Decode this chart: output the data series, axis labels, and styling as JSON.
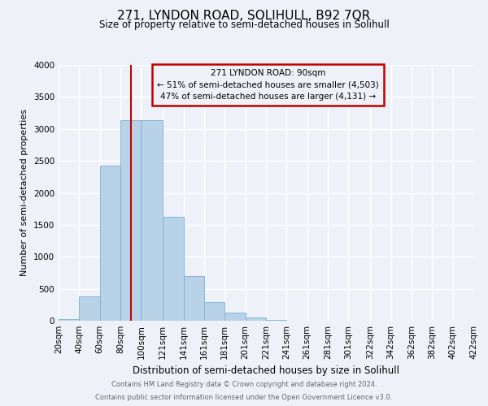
{
  "title": "271, LYNDON ROAD, SOLIHULL, B92 7QR",
  "subtitle": "Size of property relative to semi-detached houses in Solihull",
  "xlabel": "Distribution of semi-detached houses by size in Solihull",
  "ylabel": "Number of semi-detached properties",
  "footer_line1": "Contains HM Land Registry data © Crown copyright and database right 2024.",
  "footer_line2": "Contains public sector information licensed under the Open Government Licence v3.0.",
  "annotation_line1": "271 LYNDON ROAD: 90sqm",
  "annotation_line2": "← 51% of semi-detached houses are smaller (4,503)",
  "annotation_line3": "47% of semi-detached houses are larger (4,131) →",
  "property_size": 90,
  "bar_color": "#b8d3e8",
  "bar_edge_color": "#7aafd4",
  "marker_color": "#c00000",
  "background_color": "#eef2f8",
  "bin_edges": [
    20,
    40,
    60,
    80,
    100,
    121,
    141,
    161,
    181,
    201,
    221,
    241,
    261,
    281,
    301,
    322,
    342,
    362,
    382,
    402,
    422
  ],
  "bin_labels": [
    "20sqm",
    "40sqm",
    "60sqm",
    "80sqm",
    "100sqm",
    "121sqm",
    "141sqm",
    "161sqm",
    "181sqm",
    "201sqm",
    "221sqm",
    "241sqm",
    "261sqm",
    "281sqm",
    "301sqm",
    "322sqm",
    "342sqm",
    "362sqm",
    "382sqm",
    "402sqm",
    "422sqm"
  ],
  "counts": [
    28,
    375,
    2430,
    3140,
    3140,
    1630,
    695,
    295,
    130,
    55,
    18,
    5,
    0,
    0,
    0,
    0,
    0,
    0,
    0,
    0
  ],
  "ylim": [
    0,
    4000
  ],
  "yticks": [
    0,
    500,
    1000,
    1500,
    2000,
    2500,
    3000,
    3500,
    4000
  ],
  "title_fontsize": 11,
  "subtitle_fontsize": 8.5,
  "ylabel_fontsize": 8,
  "xlabel_fontsize": 8.5,
  "tick_fontsize": 7.5,
  "annotation_fontsize": 7.5,
  "footer_fontsize": 6
}
